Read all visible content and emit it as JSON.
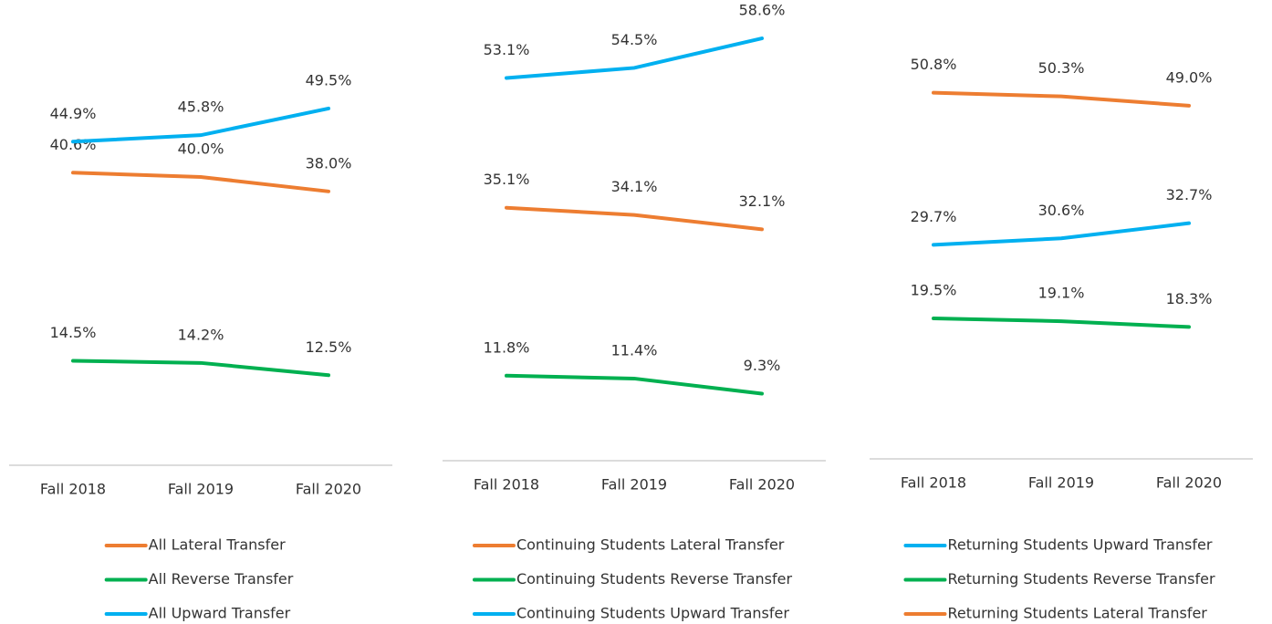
{
  "chart_data": [
    {
      "type": "line",
      "categories": [
        "Fall 2018",
        "Fall 2019",
        "Fall 2020"
      ],
      "ylim": [
        0,
        60
      ],
      "series": [
        {
          "name": "All Lateral Transfer",
          "color": "#ed7d31",
          "values": [
            40.6,
            40.0,
            38.0
          ],
          "value_labels": [
            "40.6%",
            "40.0%",
            "38.0%"
          ]
        },
        {
          "name": "All Reverse Transfer",
          "color": "#00b050",
          "values": [
            14.5,
            14.2,
            12.5
          ],
          "value_labels": [
            "14.5%",
            "14.2%",
            "12.5%"
          ]
        },
        {
          "name": "All Upward Transfer",
          "color": "#00b0f0",
          "values": [
            44.9,
            45.8,
            49.5
          ],
          "value_labels": [
            "44.9%",
            "45.8%",
            "49.5%"
          ]
        }
      ]
    },
    {
      "type": "line",
      "categories": [
        "Fall 2018",
        "Fall 2019",
        "Fall 2020"
      ],
      "ylim": [
        0,
        60
      ],
      "series": [
        {
          "name": "Continuing Students Lateral Transfer",
          "color": "#ed7d31",
          "values": [
            35.1,
            34.1,
            32.1
          ],
          "value_labels": [
            "35.1%",
            "34.1%",
            "32.1%"
          ]
        },
        {
          "name": "Continuing Students Reverse Transfer",
          "color": "#00b050",
          "values": [
            11.8,
            11.4,
            9.3
          ],
          "value_labels": [
            "11.8%",
            "11.4%",
            "9.3%"
          ]
        },
        {
          "name": "Continuing Students Upward Transfer",
          "color": "#00b0f0",
          "values": [
            53.1,
            54.5,
            58.6
          ],
          "value_labels": [
            "53.1%",
            "54.5%",
            "58.6%"
          ]
        }
      ]
    },
    {
      "type": "line",
      "categories": [
        "Fall 2018",
        "Fall 2019",
        "Fall 2020"
      ],
      "ylim": [
        0,
        60
      ],
      "series": [
        {
          "name": "Returning Students Upward Transfer",
          "color": "#00b0f0",
          "values": [
            29.7,
            30.6,
            32.7
          ],
          "value_labels": [
            "29.7%",
            "30.6%",
            "32.7%"
          ]
        },
        {
          "name": "Returning Students Reverse Transfer",
          "color": "#00b050",
          "values": [
            19.5,
            19.1,
            18.3
          ],
          "value_labels": [
            "19.5%",
            "19.1%",
            "18.3%"
          ]
        },
        {
          "name": "Returning Students Lateral Transfer",
          "color": "#ed7d31",
          "values": [
            50.8,
            50.3,
            49.0
          ],
          "value_labels": [
            "50.8%",
            "50.3%",
            "49.0%"
          ]
        }
      ]
    }
  ]
}
